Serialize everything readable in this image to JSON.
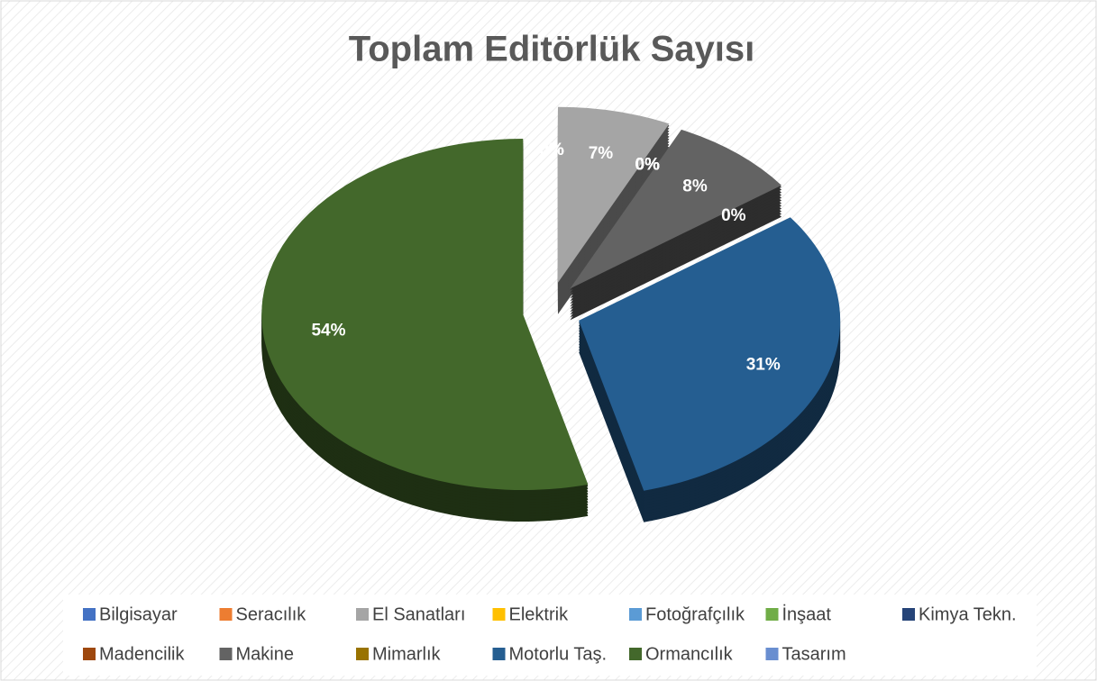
{
  "chart_data": {
    "type": "pie",
    "title": "Toplam Editörlük Sayısı",
    "categories": [
      "Bilgisayar",
      "Seracılık",
      "El Sanatları",
      "Elektrik",
      "Fotoğrafçılık",
      "İnşaat",
      "Kimya Tekn.",
      "Madencilik",
      "Makine",
      "Mimarlık",
      "Motorlu Taş.",
      "Ormancılık",
      "Tasarım"
    ],
    "values": [
      0,
      0,
      7,
      0,
      0,
      0,
      0,
      0,
      8,
      0,
      31,
      54,
      0
    ],
    "value_labels": [
      "0%",
      "0%",
      "7%",
      "0%",
      "0%",
      "0%",
      "0%",
      "0%",
      "8%",
      "0%",
      "31%",
      "54%",
      "0%"
    ],
    "colors": [
      "#4472c4",
      "#ed7d31",
      "#a5a5a5",
      "#ffc000",
      "#5b9bd5",
      "#70ad47",
      "#264478",
      "#9e480e",
      "#636363",
      "#997300",
      "#255e91",
      "#43682b",
      "#698ed0"
    ],
    "legend": "bottom"
  }
}
